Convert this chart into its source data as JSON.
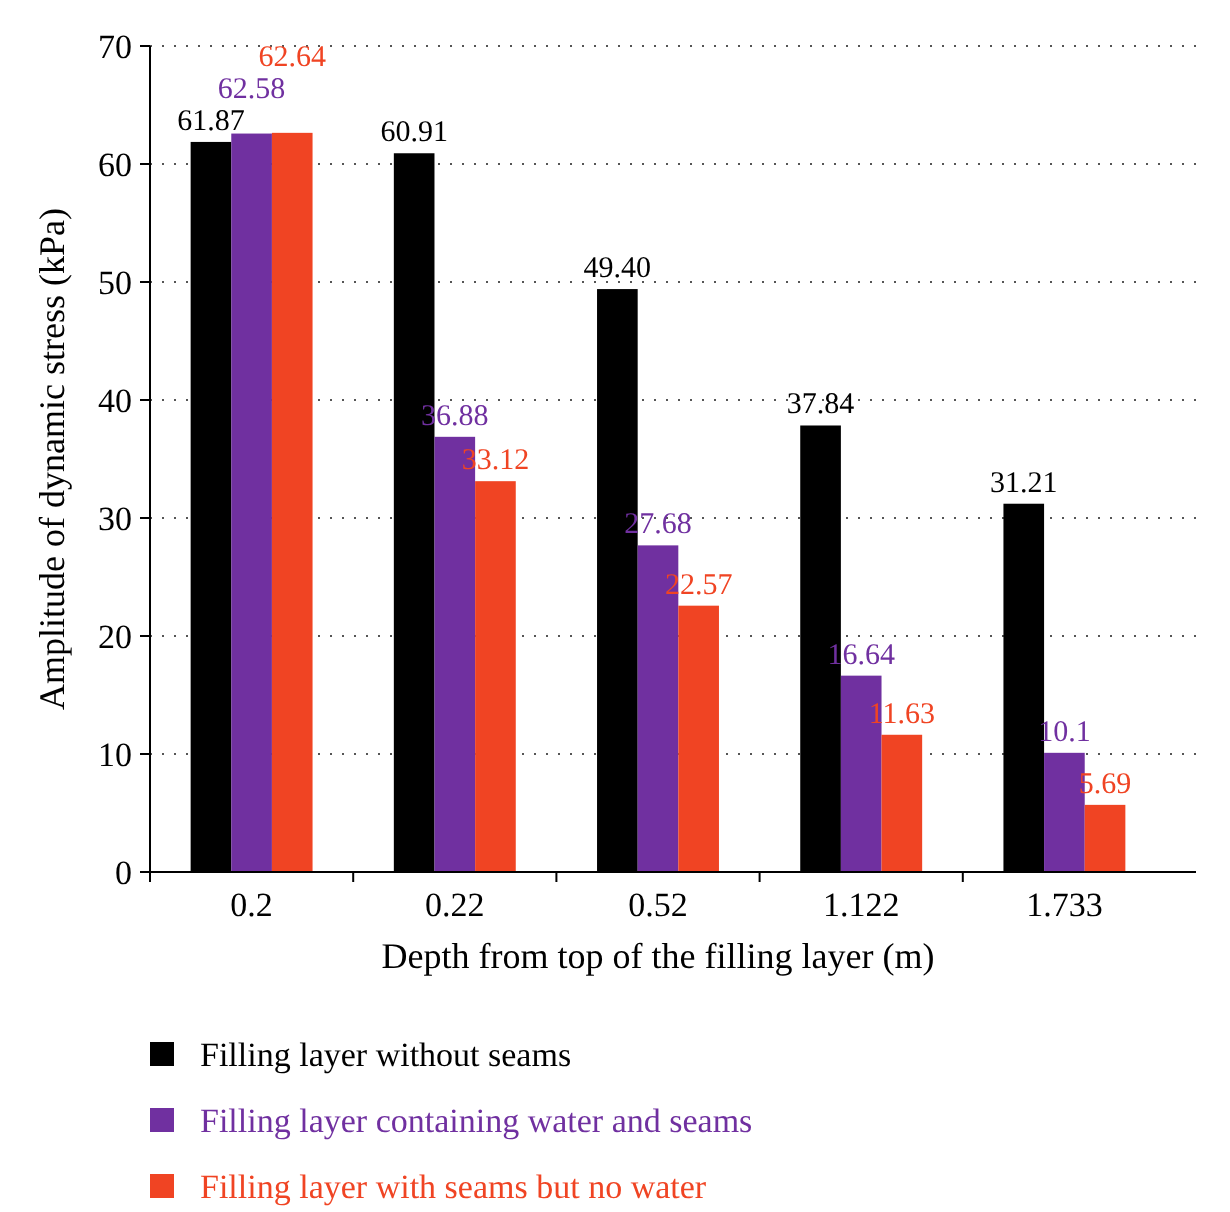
{
  "chart_data": {
    "type": "bar",
    "xlabel": "Depth from top of the filling layer (m)",
    "ylabel": "Amplitude of dynamic stress (kPa)",
    "categories": [
      "0.2",
      "0.22",
      "0.52",
      "1.122",
      "1.733"
    ],
    "series": [
      {
        "name": "Filling layer without seams",
        "color": "#000000",
        "values": [
          61.87,
          60.91,
          49.4,
          37.84,
          31.21
        ],
        "value_labels": [
          "61.87",
          "60.91",
          "49.40",
          "37.84",
          "31.21"
        ]
      },
      {
        "name": "Filling layer containing water and seams",
        "color": "#7030a0",
        "values": [
          62.58,
          36.88,
          27.68,
          16.64,
          10.1
        ],
        "value_labels": [
          "62.58",
          "36.88",
          "27.68",
          "16.64",
          "10.1"
        ]
      },
      {
        "name": "Filling layer with seams but no water",
        "color": "#f04423",
        "values": [
          62.64,
          33.12,
          22.57,
          11.63,
          5.69
        ],
        "value_labels": [
          "62.64",
          "33.12",
          "22.57",
          "11.63",
          "5.69"
        ]
      }
    ],
    "ylim": [
      0,
      70
    ],
    "yticks": [
      0,
      10,
      20,
      30,
      40,
      50,
      60,
      70
    ],
    "grid": "y",
    "legend": "bottom"
  }
}
